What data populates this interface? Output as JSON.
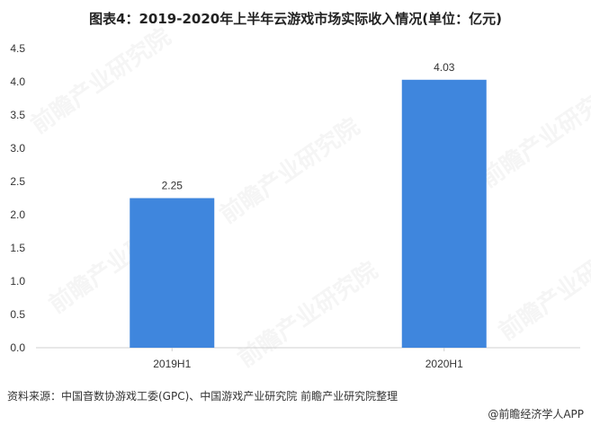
{
  "title": "图表4：2019-2020年上半年云游戏市场实际收入情况(单位：亿元)",
  "source": "资料来源：中国音数协游戏工委(GPC)、中国游戏产业研究院 前瞻产业研究院整理",
  "brand": "@前瞻经济学人APP",
  "watermark": "前瞻产业研究院",
  "colors": {
    "bar": "#3f86dd",
    "axis": "#d0d0d0",
    "text": "#333333"
  },
  "chart_data": {
    "type": "bar",
    "categories": [
      "2019H1",
      "2020H1"
    ],
    "values": [
      2.25,
      4.03
    ],
    "data_labels": [
      "2.25",
      "4.03"
    ],
    "ylim": [
      0,
      4.5
    ],
    "yticks": [
      0.0,
      0.5,
      1.0,
      1.5,
      2.0,
      2.5,
      3.0,
      3.5,
      4.0,
      4.5
    ],
    "ytick_labels": [
      "0.0",
      "0.5",
      "1.0",
      "1.5",
      "2.0",
      "2.5",
      "3.0",
      "3.5",
      "4.0",
      "4.5"
    ],
    "grid": false
  }
}
